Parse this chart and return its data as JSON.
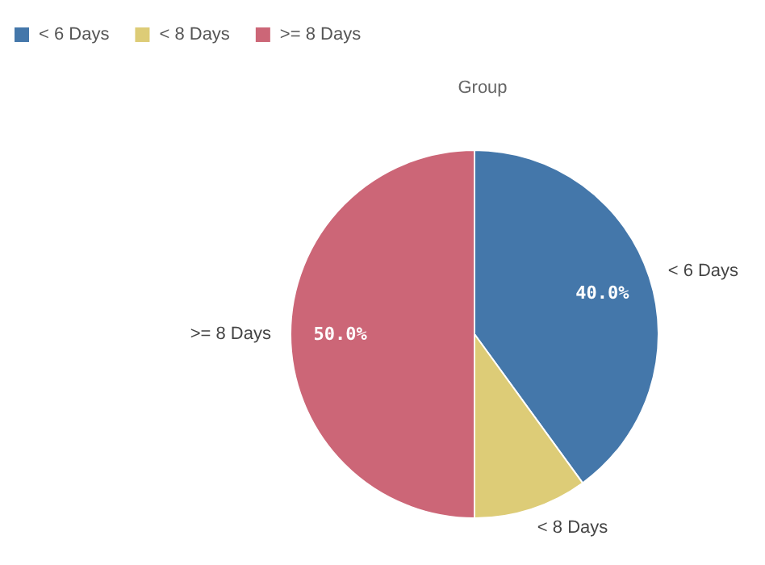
{
  "chart_data": {
    "type": "pie",
    "title": "Group",
    "categories": [
      "< 6 Days",
      "< 8 Days",
      ">= 8 Days"
    ],
    "values": [
      40,
      10,
      50
    ],
    "colors": [
      "#4477aa",
      "#ddcc77",
      "#cc6677"
    ],
    "value_labels": [
      "40.0%",
      null,
      "50.0%"
    ],
    "legend": "top left"
  }
}
